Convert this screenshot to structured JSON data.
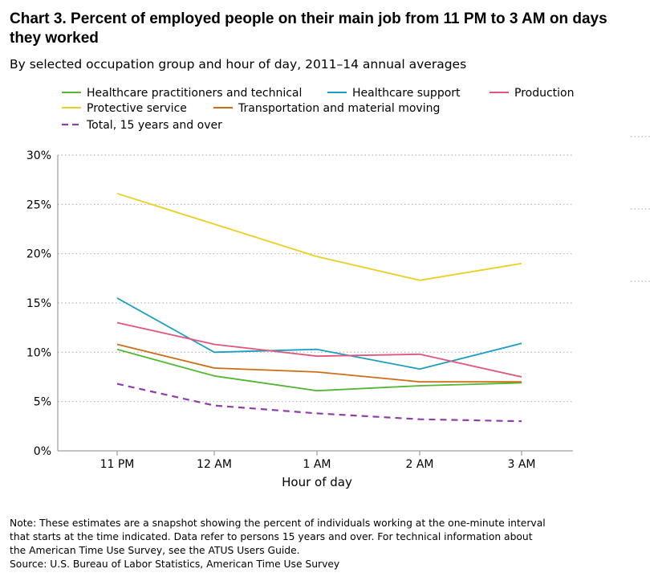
{
  "chart_data": {
    "type": "line",
    "title": "Chart 3. Percent of employed people on their main job from 11 PM to 3 AM on days they worked",
    "subtitle": "By selected occupation group and hour of day, 2011–14 annual averages",
    "xlabel": "Hour of day",
    "ylabel": "",
    "categories": [
      "11 PM",
      "12 AM",
      "1 AM",
      "2 AM",
      "3 AM"
    ],
    "ylim": [
      0,
      30
    ],
    "yticks": [
      0,
      5,
      10,
      15,
      20,
      25,
      30
    ],
    "ytick_labels": [
      "0%",
      "5%",
      "10%",
      "15%",
      "20%",
      "25%",
      "30%"
    ],
    "grid": true,
    "legend_position": "top",
    "series": [
      {
        "name": "Healthcare practitioners and technical",
        "color": "#52b832",
        "dashed": false,
        "values": [
          10.3,
          7.6,
          6.1,
          6.6,
          6.9
        ]
      },
      {
        "name": "Healthcare support",
        "color": "#1b9ec4",
        "dashed": false,
        "values": [
          15.5,
          10.0,
          10.3,
          8.3,
          10.9
        ]
      },
      {
        "name": "Production",
        "color": "#e0567c",
        "dashed": false,
        "values": [
          13.0,
          10.8,
          9.6,
          9.8,
          7.5
        ]
      },
      {
        "name": "Protective service",
        "color": "#ead022",
        "dashed": false,
        "values": [
          26.1,
          23.0,
          19.7,
          17.3,
          19.0
        ]
      },
      {
        "name": "Transportation and material moving",
        "color": "#cd6d17",
        "dashed": false,
        "values": [
          10.8,
          8.4,
          8.0,
          7.0,
          7.0
        ]
      },
      {
        "name": "Total, 15 years and over",
        "color": "#8e3dab",
        "dashed": true,
        "values": [
          6.8,
          4.6,
          3.8,
          3.2,
          3.0
        ]
      }
    ]
  },
  "note": "Note: These estimates are a snapshot showing the percent of individuals working at the one-minute interval\n that starts at the time indicated. Data refer to persons 15 years and over. For technical information about\n the American Time Use Survey, see the ATUS Users Guide.",
  "source": "Source: U.S. Bureau of Labor Statistics, American Time Use Survey"
}
